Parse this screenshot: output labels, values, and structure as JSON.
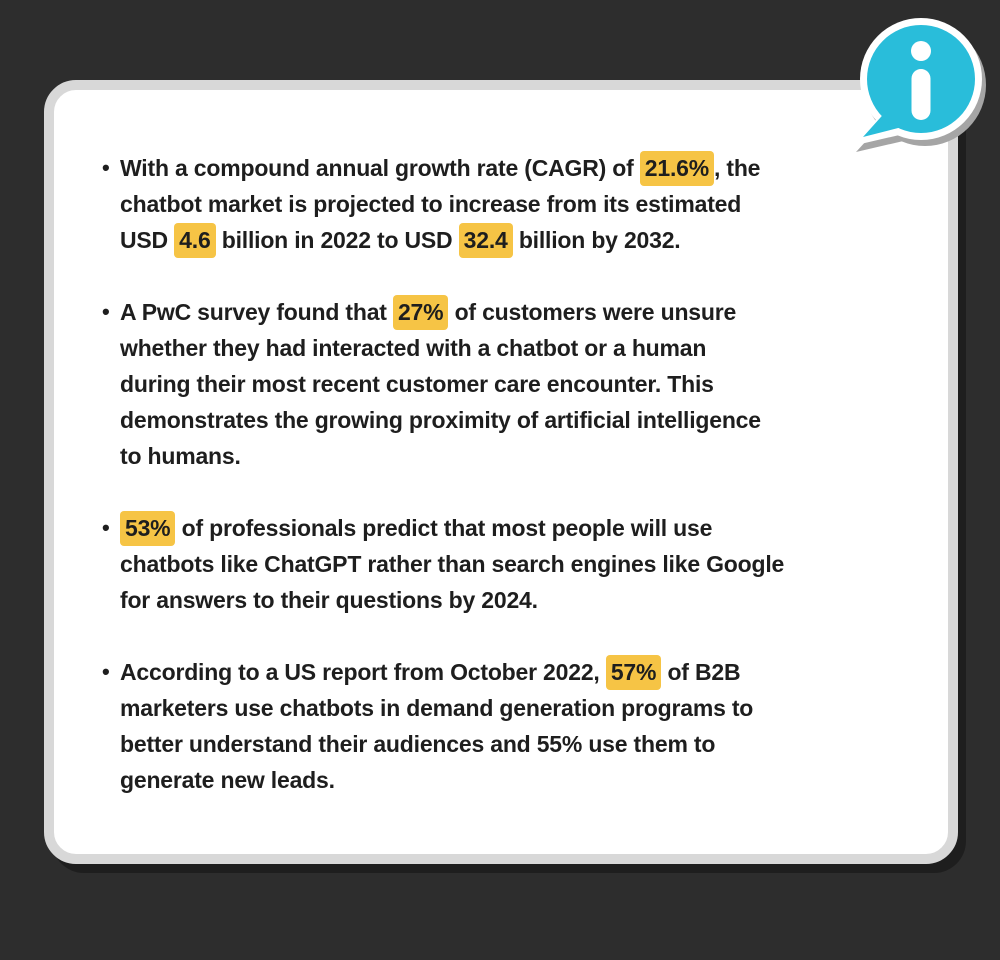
{
  "colors": {
    "background": "#2d2d2d",
    "card_background": "#ffffff",
    "card_border": "#d8d8d8",
    "highlight": "#f6c445",
    "icon_accent": "#29bdda",
    "text": "#1e1e1e"
  },
  "icon": {
    "type": "info-speech-bubble",
    "glyph": "i"
  },
  "card": {
    "bullet_glyph": "•",
    "bullets": [
      {
        "lines": [
          [
            {
              "text": "With a compound annual growth rate (CAGR) of "
            },
            {
              "text": "21.6%",
              "highlight": true
            },
            {
              "text": ", the"
            }
          ],
          [
            {
              "text": "chatbot market is projected to increase from its estimated"
            }
          ],
          [
            {
              "text": "USD "
            },
            {
              "text": "4.6",
              "highlight": true
            },
            {
              "text": " billion in 2022 to USD "
            },
            {
              "text": "32.4",
              "highlight": true
            },
            {
              "text": " billion by 2032."
            }
          ]
        ]
      },
      {
        "lines": [
          [
            {
              "text": "A PwC survey found that "
            },
            {
              "text": "27%",
              "highlight": true
            },
            {
              "text": " of customers were unsure"
            }
          ],
          [
            {
              "text": "whether they had interacted with a chatbot or a human"
            }
          ],
          [
            {
              "text": "during their most recent customer care encounter. This"
            }
          ],
          [
            {
              "text": "demonstrates the growing proximity of artificial intelligence"
            }
          ],
          [
            {
              "text": "to humans."
            }
          ]
        ]
      },
      {
        "lines": [
          [
            {
              "text": "53%",
              "highlight": true
            },
            {
              "text": " of professionals predict that most people will use"
            }
          ],
          [
            {
              "text": "chatbots like ChatGPT rather than search engines like Google"
            }
          ],
          [
            {
              "text": "for answers to their questions by 2024."
            }
          ]
        ]
      },
      {
        "lines": [
          [
            {
              "text": "According to a US report from October 2022, "
            },
            {
              "text": "57%",
              "highlight": true
            },
            {
              "text": " of B2B"
            }
          ],
          [
            {
              "text": "marketers use chatbots in demand generation programs to"
            }
          ],
          [
            {
              "text": "better understand their audiences and 55% use them to"
            }
          ],
          [
            {
              "text": "generate new leads."
            }
          ]
        ]
      }
    ]
  }
}
